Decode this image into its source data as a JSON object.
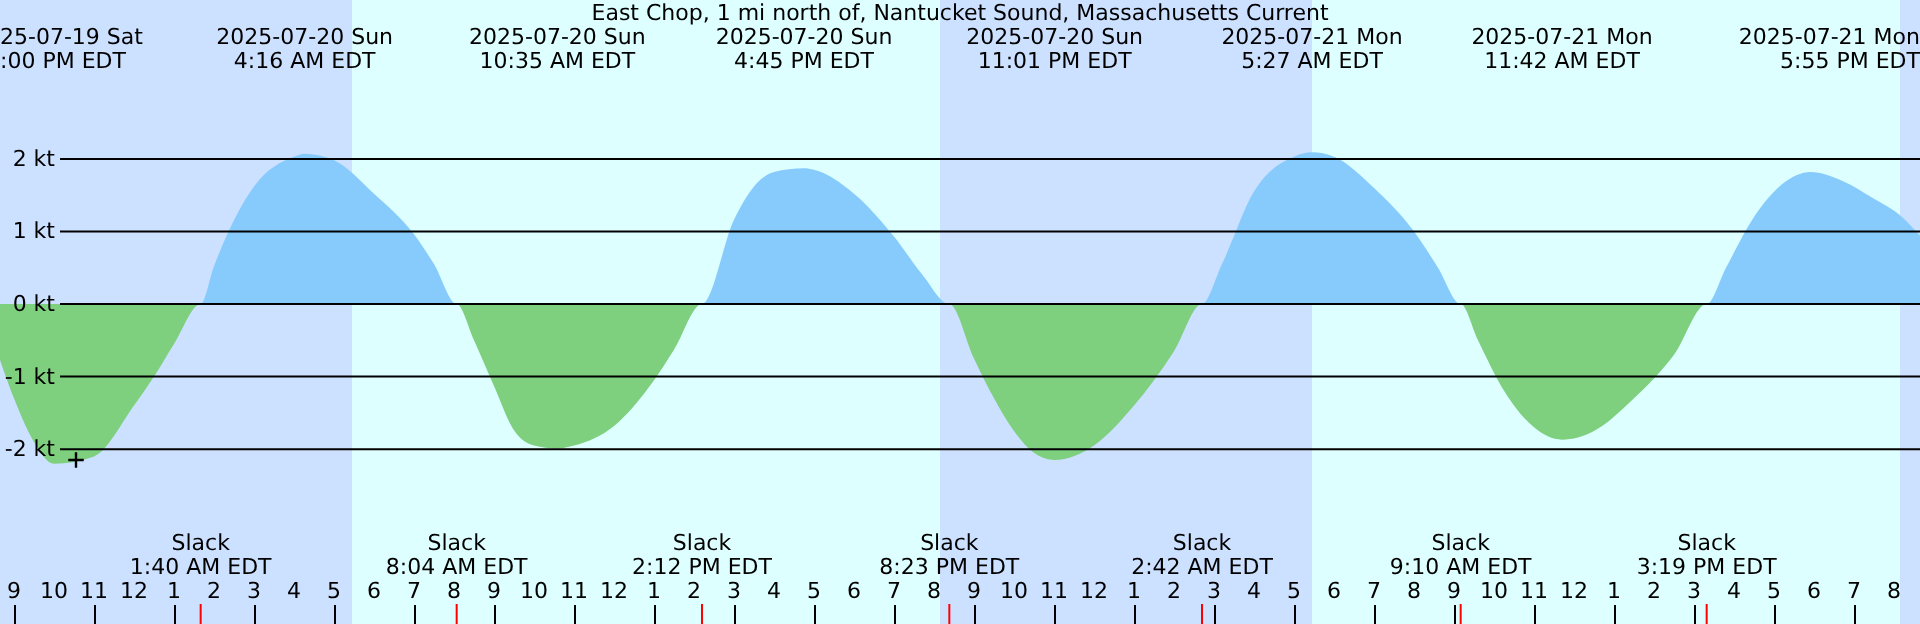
{
  "chart_data": {
    "type": "area",
    "title": "East Chop, 1 mi north of, Nantucket Sound, Massachusetts Current",
    "xlim": [
      "2025-07-19T20:39",
      "2025-07-21T20:39"
    ],
    "ylim": [
      -4.41,
      4.19
    ],
    "xticks": [
      {
        "value": "2025-07-19T21:00",
        "label": "9"
      },
      {
        "value": "2025-07-19T22:00",
        "label": "10"
      },
      {
        "value": "2025-07-19T23:00",
        "label": "11"
      },
      {
        "value": "2025-07-20T00:00",
        "label": "12"
      },
      {
        "value": "2025-07-20T01:00",
        "label": "1"
      },
      {
        "value": "2025-07-20T02:00",
        "label": "2"
      },
      {
        "value": "2025-07-20T03:00",
        "label": "3"
      },
      {
        "value": "2025-07-20T04:00",
        "label": "4"
      },
      {
        "value": "2025-07-20T05:00",
        "label": "5"
      },
      {
        "value": "2025-07-20T06:00",
        "label": "6"
      },
      {
        "value": "2025-07-20T07:00",
        "label": "7"
      },
      {
        "value": "2025-07-20T08:00",
        "label": "8"
      },
      {
        "value": "2025-07-20T09:00",
        "label": "9"
      },
      {
        "value": "2025-07-20T10:00",
        "label": "10"
      },
      {
        "value": "2025-07-20T11:00",
        "label": "11"
      },
      {
        "value": "2025-07-20T12:00",
        "label": "12"
      },
      {
        "value": "2025-07-20T13:00",
        "label": "1"
      },
      {
        "value": "2025-07-20T14:00",
        "label": "2"
      },
      {
        "value": "2025-07-20T15:00",
        "label": "3"
      },
      {
        "value": "2025-07-20T16:00",
        "label": "4"
      },
      {
        "value": "2025-07-20T17:00",
        "label": "5"
      },
      {
        "value": "2025-07-20T18:00",
        "label": "6"
      },
      {
        "value": "2025-07-20T19:00",
        "label": "7"
      },
      {
        "value": "2025-07-20T20:00",
        "label": "8"
      },
      {
        "value": "2025-07-20T21:00",
        "label": "9"
      },
      {
        "value": "2025-07-20T22:00",
        "label": "10"
      },
      {
        "value": "2025-07-20T23:00",
        "label": "11"
      },
      {
        "value": "2025-07-21T00:00",
        "label": "12"
      },
      {
        "value": "2025-07-21T01:00",
        "label": "1"
      },
      {
        "value": "2025-07-21T02:00",
        "label": "2"
      },
      {
        "value": "2025-07-21T03:00",
        "label": "3"
      },
      {
        "value": "2025-07-21T04:00",
        "label": "4"
      },
      {
        "value": "2025-07-21T05:00",
        "label": "5"
      },
      {
        "value": "2025-07-21T06:00",
        "label": "6"
      },
      {
        "value": "2025-07-21T07:00",
        "label": "7"
      },
      {
        "value": "2025-07-21T08:00",
        "label": "8"
      },
      {
        "value": "2025-07-21T09:00",
        "label": "9"
      },
      {
        "value": "2025-07-21T10:00",
        "label": "10"
      },
      {
        "value": "2025-07-21T11:00",
        "label": "11"
      },
      {
        "value": "2025-07-21T12:00",
        "label": "12"
      },
      {
        "value": "2025-07-21T13:00",
        "label": "1"
      },
      {
        "value": "2025-07-21T14:00",
        "label": "2"
      },
      {
        "value": "2025-07-21T15:00",
        "label": "3"
      },
      {
        "value": "2025-07-21T16:00",
        "label": "4"
      },
      {
        "value": "2025-07-21T17:00",
        "label": "5"
      },
      {
        "value": "2025-07-21T18:00",
        "label": "6"
      },
      {
        "value": "2025-07-21T19:00",
        "label": "7"
      },
      {
        "value": "2025-07-21T20:00",
        "label": "8"
      }
    ],
    "yticks": [
      {
        "value": 2,
        "label": "2 kt"
      },
      {
        "value": 1,
        "label": "1 kt"
      },
      {
        "value": 0,
        "label": "0 kt"
      },
      {
        "value": -1,
        "label": "-1 kt"
      },
      {
        "value": -2,
        "label": "-2 kt"
      }
    ],
    "grid": "y",
    "bands": [
      {
        "axis": "x",
        "from": "2025-07-19T20:39",
        "to": "2025-07-20T05:27",
        "color": "#cce0ff"
      },
      {
        "axis": "x",
        "from": "2025-07-20T05:27",
        "to": "2025-07-20T20:09",
        "color": "#ddffff"
      },
      {
        "axis": "x",
        "from": "2025-07-20T20:09",
        "to": "2025-07-21T05:27",
        "color": "#cce0ff"
      },
      {
        "axis": "x",
        "from": "2025-07-21T05:27",
        "to": "2025-07-21T20:09",
        "color": "#ddffff"
      },
      {
        "axis": "x",
        "from": "2025-07-21T20:09",
        "to": "2025-07-21T20:39",
        "color": "#cce0ff"
      }
    ],
    "series": [
      {
        "color": "#87cbfc",
        "x": [
          "2025-07-19T20:39",
          "2025-07-20T01:40",
          "2025-07-20T02:00",
          "2025-07-20T03:00",
          "2025-07-20T04:00",
          "2025-07-20T04:16",
          "2025-07-20T05:00",
          "2025-07-20T06:00",
          "2025-07-20T07:00",
          "2025-07-20T07:30",
          "2025-07-20T08:04",
          "2025-07-20T14:12",
          "2025-07-20T15:00",
          "2025-07-20T15:30",
          "2025-07-20T16:00",
          "2025-07-20T16:45",
          "2025-07-20T17:00",
          "2025-07-20T18:00",
          "2025-07-20T19:00",
          "2025-07-20T19:42",
          "2025-07-20T20:23",
          "2025-07-21T02:42",
          "2025-07-21T03:12",
          "2025-07-21T04:00",
          "2025-07-21T05:00",
          "2025-07-21T05:27",
          "2025-07-21T06:00",
          "2025-07-21T07:00",
          "2025-07-21T08:00",
          "2025-07-21T08:36",
          "2025-07-21T09:10",
          "2025-07-21T15:19",
          "2025-07-21T15:48",
          "2025-07-21T16:30",
          "2025-07-21T17:12",
          "2025-07-21T17:55",
          "2025-07-21T18:42",
          "2025-07-21T19:30",
          "2025-07-21T20:12",
          "2025-07-21T20:39"
        ],
        "values": [
          0,
          0,
          0.52,
          1.62,
          2.03,
          2.07,
          1.98,
          1.52,
          0.96,
          0.55,
          0,
          0,
          1.16,
          1.62,
          1.82,
          1.87,
          1.85,
          1.52,
          0.93,
          0.41,
          0,
          0,
          0.55,
          1.55,
          2.03,
          2.09,
          2.03,
          1.6,
          1,
          0.5,
          0,
          0,
          0.5,
          1.2,
          1.65,
          1.82,
          1.7,
          1.45,
          1.2,
          0.94
        ]
      },
      {
        "color": "#7ecf7e",
        "x": [
          "2025-07-19T20:39",
          "2025-07-19T21:00",
          "2025-07-19T21:30",
          "2025-07-19T22:00",
          "2025-07-19T23:00",
          "2025-07-20T00:00",
          "2025-07-20T00:30",
          "2025-07-20T01:00",
          "2025-07-20T01:40",
          "2025-07-20T08:04",
          "2025-07-20T08:30",
          "2025-07-20T09:00",
          "2025-07-20T09:30",
          "2025-07-20T10:00",
          "2025-07-20T10:35",
          "2025-07-20T11:00",
          "2025-07-20T12:00",
          "2025-07-20T13:00",
          "2025-07-20T13:30",
          "2025-07-20T14:12",
          "2025-07-20T20:23",
          "2025-07-20T21:00",
          "2025-07-20T21:30",
          "2025-07-20T22:00",
          "2025-07-20T22:30",
          "2025-07-20T23:01",
          "2025-07-21T00:00",
          "2025-07-21T01:00",
          "2025-07-21T02:00",
          "2025-07-21T02:42",
          "2025-07-21T09:10",
          "2025-07-21T09:36",
          "2025-07-21T10:12",
          "2025-07-21T11:00",
          "2025-07-21T11:42",
          "2025-07-21T12:30",
          "2025-07-21T13:30",
          "2025-07-21T14:30",
          "2025-07-21T15:19",
          "2025-07-21T20:39"
        ],
        "values": [
          -0.77,
          -1.3,
          -1.9,
          -2.2,
          -2.1,
          -1.4,
          -1,
          -0.55,
          0,
          0,
          -0.5,
          -1.13,
          -1.74,
          -1.95,
          -1.99,
          -1.95,
          -1.68,
          -1.05,
          -0.63,
          0,
          0,
          -0.75,
          -1.3,
          -1.75,
          -2.05,
          -2.15,
          -1.95,
          -1.4,
          -0.65,
          0,
          0,
          -0.5,
          -1.15,
          -1.7,
          -1.87,
          -1.75,
          -1.3,
          -0.7,
          0,
          0
        ]
      },
      {
        "type": "scatter",
        "marker": "cross",
        "color": "#000000",
        "x": [
          "2025-07-19T22:33"
        ],
        "values": [
          -2.15
        ]
      }
    ],
    "annotations": [
      "25-07-19 Sat\n:00 PM EDT",
      "2025-07-20 Sun\n4:16 AM EDT",
      "2025-07-20 Sun\n10:35 AM EDT",
      "2025-07-20 Sun\n4:45 PM EDT",
      "2025-07-20 Sun\n11:01 PM EDT",
      "2025-07-21 Mon\n5:27 AM EDT",
      "2025-07-21 Mon\n11:42 AM EDT",
      "2025-07-21 Mon\n5:55 PM EDT",
      "Slack\n1:40 AM EDT",
      "Slack\n8:04 AM EDT",
      "Slack\n2:12 PM EDT",
      "Slack\n8:23 PM EDT",
      "Slack\n2:42 AM EDT",
      "Slack\n9:10 AM EDT",
      "Slack\n3:19 PM EDT"
    ]
  }
}
